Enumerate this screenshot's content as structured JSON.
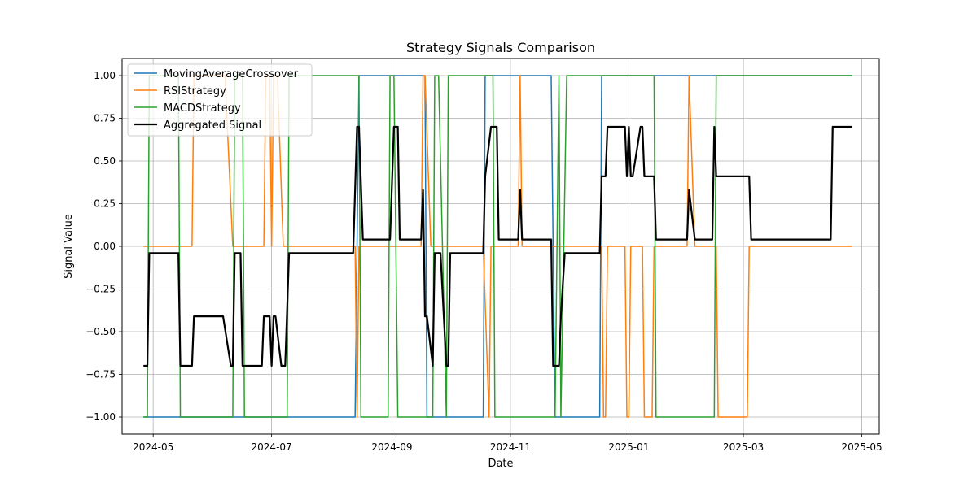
{
  "chart_data": {
    "type": "line",
    "title": "Strategy Signals Comparison",
    "xlabel": "Date",
    "ylabel": "Signal Value",
    "grid": true,
    "legend_placement": "top-left",
    "xlim": [
      "2024-04-15",
      "2025-05-10"
    ],
    "ylim": [
      -1.1,
      1.1
    ],
    "x_ticks": [
      {
        "date": "2024-05-01",
        "label": "2024-05"
      },
      {
        "date": "2024-07-01",
        "label": "2024-07"
      },
      {
        "date": "2024-09-01",
        "label": "2024-09"
      },
      {
        "date": "2024-11-01",
        "label": "2024-11"
      },
      {
        "date": "2025-01-01",
        "label": "2025-01"
      },
      {
        "date": "2025-03-01",
        "label": "2025-03"
      },
      {
        "date": "2025-05-01",
        "label": "2025-05"
      }
    ],
    "y_ticks": [
      -1.0,
      -0.75,
      -0.5,
      -0.25,
      0.0,
      0.25,
      0.5,
      0.75,
      1.0
    ],
    "y_tick_labels": [
      "−1.00",
      "−0.75",
      "−0.50",
      "−0.25",
      "0.00",
      "0.25",
      "0.50",
      "0.75",
      "1.00"
    ],
    "series": [
      {
        "name": "MovingAverageCrossover",
        "color": "#1f77b4",
        "points": [
          [
            "2024-04-26",
            -1
          ],
          [
            "2024-08-13",
            -1
          ],
          [
            "2024-08-15",
            1
          ],
          [
            "2024-09-18",
            1
          ],
          [
            "2024-09-19",
            -1
          ],
          [
            "2024-10-18",
            -1
          ],
          [
            "2024-10-19",
            1
          ],
          [
            "2024-11-22",
            1
          ],
          [
            "2024-11-24",
            -1
          ],
          [
            "2024-12-17",
            -1
          ],
          [
            "2024-12-18",
            1
          ],
          [
            "2025-04-26",
            1
          ]
        ]
      },
      {
        "name": "RSIStrategy",
        "color": "#ff7f0e",
        "points": [
          [
            "2024-04-26",
            0
          ],
          [
            "2024-05-21",
            0
          ],
          [
            "2024-05-22",
            1
          ],
          [
            "2024-06-07",
            1
          ],
          [
            "2024-06-11",
            0
          ],
          [
            "2024-06-27",
            0
          ],
          [
            "2024-06-28",
            1
          ],
          [
            "2024-06-30",
            1
          ],
          [
            "2024-07-01",
            0
          ],
          [
            "2024-07-02",
            1
          ],
          [
            "2024-07-04",
            1
          ],
          [
            "2024-07-07",
            0
          ],
          [
            "2024-08-13",
            0
          ],
          [
            "2024-08-14",
            -1
          ],
          [
            "2024-08-15",
            0
          ],
          [
            "2024-09-16",
            0
          ],
          [
            "2024-09-17",
            1
          ],
          [
            "2024-09-18",
            1
          ],
          [
            "2024-09-21",
            0
          ],
          [
            "2024-10-18",
            0
          ],
          [
            "2024-10-21",
            -1
          ],
          [
            "2024-10-22",
            0
          ],
          [
            "2024-11-05",
            0
          ],
          [
            "2024-11-06",
            1
          ],
          [
            "2024-11-07",
            0
          ],
          [
            "2024-11-30",
            0
          ],
          [
            "2024-12-18",
            0
          ],
          [
            "2024-12-19",
            -1
          ],
          [
            "2024-12-20",
            -1
          ],
          [
            "2024-12-21",
            0
          ],
          [
            "2024-12-30",
            0
          ],
          [
            "2024-12-31",
            -1
          ],
          [
            "2025-01-01",
            -1
          ],
          [
            "2025-01-02",
            0
          ],
          [
            "2025-01-08",
            0
          ],
          [
            "2025-01-09",
            -1
          ],
          [
            "2025-01-13",
            -1
          ],
          [
            "2025-01-14",
            0
          ],
          [
            "2025-01-31",
            0
          ],
          [
            "2025-02-01",
            1
          ],
          [
            "2025-02-04",
            0
          ],
          [
            "2025-02-15",
            0
          ],
          [
            "2025-02-16",
            -1
          ],
          [
            "2025-03-03",
            -1
          ],
          [
            "2025-03-04",
            0
          ],
          [
            "2025-04-26",
            0
          ]
        ]
      },
      {
        "name": "MACDStrategy",
        "color": "#2ca02c",
        "points": [
          [
            "2024-04-26",
            -1
          ],
          [
            "2024-04-28",
            -1
          ],
          [
            "2024-04-29",
            1
          ],
          [
            "2024-05-14",
            1
          ],
          [
            "2024-05-15",
            -1
          ],
          [
            "2024-06-11",
            -1
          ],
          [
            "2024-06-12",
            1
          ],
          [
            "2024-06-16",
            1
          ],
          [
            "2024-06-17",
            -1
          ],
          [
            "2024-07-09",
            -1
          ],
          [
            "2024-07-10",
            1
          ],
          [
            "2024-08-15",
            1
          ],
          [
            "2024-08-16",
            -1
          ],
          [
            "2024-08-30",
            -1
          ],
          [
            "2024-08-31",
            1
          ],
          [
            "2024-09-02",
            1
          ],
          [
            "2024-09-04",
            -1
          ],
          [
            "2024-09-22",
            -1
          ],
          [
            "2024-09-23",
            1
          ],
          [
            "2024-09-25",
            1
          ],
          [
            "2024-09-29",
            -1
          ],
          [
            "2024-09-30",
            1
          ],
          [
            "2024-10-23",
            1
          ],
          [
            "2024-10-24",
            -1
          ],
          [
            "2024-11-24",
            -1
          ],
          [
            "2024-11-26",
            1
          ],
          [
            "2024-11-27",
            -1
          ],
          [
            "2024-11-30",
            1
          ],
          [
            "2025-01-14",
            1
          ],
          [
            "2025-01-15",
            -1
          ],
          [
            "2025-02-14",
            -1
          ],
          [
            "2025-02-15",
            1
          ],
          [
            "2025-04-15",
            1
          ],
          [
            "2025-04-16",
            1
          ],
          [
            "2025-04-26",
            1
          ]
        ]
      },
      {
        "name": "Aggregated Signal",
        "color": "#000000",
        "points": [
          [
            "2024-04-26",
            -0.7
          ],
          [
            "2024-04-28",
            -0.7
          ],
          [
            "2024-04-29",
            -0.04
          ],
          [
            "2024-05-14",
            -0.04
          ],
          [
            "2024-05-15",
            -0.7
          ],
          [
            "2024-05-21",
            -0.7
          ],
          [
            "2024-05-22",
            -0.41
          ],
          [
            "2024-06-06",
            -0.41
          ],
          [
            "2024-06-10",
            -0.7
          ],
          [
            "2024-06-11",
            -0.7
          ],
          [
            "2024-06-12",
            -0.04
          ],
          [
            "2024-06-15",
            -0.04
          ],
          [
            "2024-06-16",
            -0.7
          ],
          [
            "2024-06-26",
            -0.7
          ],
          [
            "2024-06-27",
            -0.41
          ],
          [
            "2024-06-30",
            -0.41
          ],
          [
            "2024-07-01",
            -0.7
          ],
          [
            "2024-07-02",
            -0.41
          ],
          [
            "2024-07-03",
            -0.41
          ],
          [
            "2024-07-06",
            -0.7
          ],
          [
            "2024-07-08",
            -0.7
          ],
          [
            "2024-07-10",
            -0.04
          ],
          [
            "2024-08-12",
            -0.04
          ],
          [
            "2024-08-14",
            0.7
          ],
          [
            "2024-08-15",
            0.7
          ],
          [
            "2024-08-17",
            0.04
          ],
          [
            "2024-08-31",
            0.04
          ],
          [
            "2024-09-02",
            0.7
          ],
          [
            "2024-09-04",
            0.7
          ],
          [
            "2024-09-05",
            0.04
          ],
          [
            "2024-09-16",
            0.04
          ],
          [
            "2024-09-17",
            0.33
          ],
          [
            "2024-09-18",
            -0.41
          ],
          [
            "2024-09-19",
            -0.41
          ],
          [
            "2024-09-22",
            -0.7
          ],
          [
            "2024-09-23",
            -0.04
          ],
          [
            "2024-09-26",
            -0.04
          ],
          [
            "2024-09-29",
            -0.7
          ],
          [
            "2024-09-30",
            -0.7
          ],
          [
            "2024-10-01",
            -0.04
          ],
          [
            "2024-10-18",
            -0.04
          ],
          [
            "2024-10-19",
            0.41
          ],
          [
            "2024-10-22",
            0.7
          ],
          [
            "2024-10-25",
            0.7
          ],
          [
            "2024-10-26",
            0.04
          ],
          [
            "2024-11-05",
            0.04
          ],
          [
            "2024-11-06",
            0.33
          ],
          [
            "2024-11-07",
            0.04
          ],
          [
            "2024-11-22",
            0.04
          ],
          [
            "2024-11-23",
            -0.7
          ],
          [
            "2024-11-26",
            -0.7
          ],
          [
            "2024-11-27",
            -0.41
          ],
          [
            "2024-11-29",
            -0.04
          ],
          [
            "2024-12-17",
            -0.04
          ],
          [
            "2024-12-18",
            0.41
          ],
          [
            "2024-12-20",
            0.41
          ],
          [
            "2024-12-21",
            0.7
          ],
          [
            "2024-12-30",
            0.7
          ],
          [
            "2024-12-31",
            0.41
          ],
          [
            "2025-01-01",
            0.7
          ],
          [
            "2025-01-02",
            0.41
          ],
          [
            "2025-01-03",
            0.41
          ],
          [
            "2025-01-07",
            0.7
          ],
          [
            "2025-01-08",
            0.7
          ],
          [
            "2025-01-09",
            0.41
          ],
          [
            "2025-01-14",
            0.41
          ],
          [
            "2025-01-15",
            0.04
          ],
          [
            "2025-01-31",
            0.04
          ],
          [
            "2025-02-01",
            0.33
          ],
          [
            "2025-02-04",
            0.04
          ],
          [
            "2025-02-13",
            0.04
          ],
          [
            "2025-02-14",
            0.7
          ],
          [
            "2025-02-15",
            0.41
          ],
          [
            "2025-03-04",
            0.41
          ],
          [
            "2025-03-05",
            0.04
          ],
          [
            "2025-04-15",
            0.04
          ],
          [
            "2025-04-16",
            0.7
          ],
          [
            "2025-04-26",
            0.7
          ]
        ]
      }
    ]
  }
}
